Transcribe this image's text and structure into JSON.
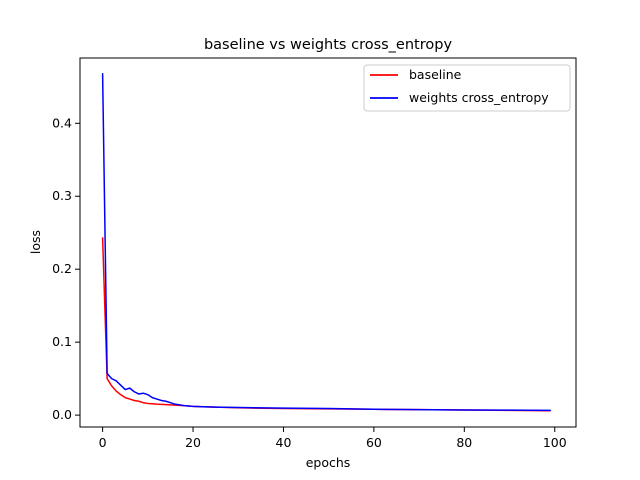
{
  "chart_data": {
    "type": "line",
    "title": "baseline vs weights cross_entropy",
    "xlabel": "epochs",
    "ylabel": "loss",
    "xlim": [
      -5,
      104.7
    ],
    "ylim": [
      -0.0163,
      0.4895
    ],
    "xticks": [
      0,
      20,
      40,
      60,
      80,
      100
    ],
    "yticks": [
      0.0,
      0.1,
      0.2,
      0.3,
      0.4
    ],
    "xtick_labels": [
      "0",
      "20",
      "40",
      "60",
      "80",
      "100"
    ],
    "ytick_labels": [
      "0.0",
      "0.1",
      "0.2",
      "0.3",
      "0.4"
    ],
    "grid": false,
    "legend_position": "top-right",
    "series": [
      {
        "name": "baseline",
        "color": "#ff0000",
        "x": [
          0,
          1,
          2,
          3,
          4,
          5,
          6,
          7,
          8,
          9,
          10,
          12,
          15,
          18,
          20,
          25,
          30,
          40,
          50,
          60,
          70,
          80,
          90,
          99
        ],
        "y": [
          0.243,
          0.05,
          0.04,
          0.033,
          0.028,
          0.024,
          0.022,
          0.02,
          0.019,
          0.017,
          0.016,
          0.015,
          0.014,
          0.013,
          0.012,
          0.011,
          0.01,
          0.009,
          0.0085,
          0.008,
          0.0075,
          0.007,
          0.0065,
          0.006
        ]
      },
      {
        "name": "weights cross_entropy",
        "color": "#0000ff",
        "x": [
          0,
          1,
          2,
          3,
          4,
          5,
          6,
          7,
          8,
          9,
          10,
          11,
          12,
          13,
          14,
          15,
          16,
          17,
          18,
          20,
          22,
          25,
          30,
          40,
          50,
          60,
          70,
          80,
          90,
          99
        ],
        "y": [
          0.468,
          0.057,
          0.05,
          0.047,
          0.041,
          0.035,
          0.037,
          0.032,
          0.029,
          0.03,
          0.028,
          0.024,
          0.022,
          0.02,
          0.019,
          0.017,
          0.015,
          0.014,
          0.013,
          0.012,
          0.0115,
          0.011,
          0.0105,
          0.0095,
          0.009,
          0.008,
          0.0075,
          0.007,
          0.0068,
          0.0065
        ]
      }
    ]
  }
}
